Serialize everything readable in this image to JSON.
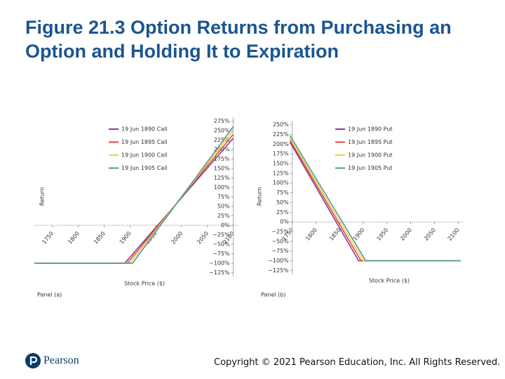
{
  "header": {
    "title": "Figure 21.3 Option Returns from Purchasing an Option and Holding It to Expiration"
  },
  "chart_data": [
    {
      "type": "line",
      "panel_label": "Panel (a)",
      "xlabel": "Stock Price ($)",
      "ylabel": "Return",
      "xlim": [
        1715,
        2110
      ],
      "xticks": [
        1750,
        1800,
        1850,
        1900,
        1950,
        2000,
        2050,
        2100
      ],
      "ylim": [
        -135,
        285
      ],
      "yticks": [
        {
          "value": 275,
          "label": "275%"
        },
        {
          "value": 250,
          "label": "250%"
        },
        {
          "value": 225,
          "label": "225%"
        },
        {
          "value": 200,
          "label": "200%"
        },
        {
          "value": 175,
          "label": "175%"
        },
        {
          "value": 150,
          "label": "150%"
        },
        {
          "value": 125,
          "label": "125%"
        },
        {
          "value": 100,
          "label": "100%"
        },
        {
          "value": 75,
          "label": "75%"
        },
        {
          "value": 50,
          "label": "50%"
        },
        {
          "value": 25,
          "label": "25%"
        },
        {
          "value": 0,
          "label": "0%"
        },
        {
          "value": -25,
          "label": "−25%"
        },
        {
          "value": -50,
          "label": "−50%"
        },
        {
          "value": -75,
          "label": "−75%"
        },
        {
          "value": -100,
          "label": "−100%"
        },
        {
          "value": -125,
          "label": "−125%"
        }
      ],
      "yaxis_at": 2100,
      "legend": "top-left",
      "series": [
        {
          "name": "19 Jun 1890 Call",
          "color": "#7e3f98",
          "x": [
            1715,
            1890,
            2100
          ],
          "values": [
            -100,
            -100,
            230
          ]
        },
        {
          "name": "19 Jun 1895 Call",
          "color": "#e8473c",
          "x": [
            1715,
            1895,
            2100
          ],
          "values": [
            -100,
            -100,
            240
          ]
        },
        {
          "name": "19 Jun 1900 Call",
          "color": "#e9d23c",
          "x": [
            1715,
            1900,
            2100
          ],
          "values": [
            -100,
            -100,
            250
          ]
        },
        {
          "name": "19 Jun 1905 Call",
          "color": "#4a9aa0",
          "x": [
            1715,
            1905,
            2100
          ],
          "values": [
            -100,
            -100,
            260
          ]
        }
      ]
    },
    {
      "type": "line",
      "panel_label": "Panel (b)",
      "xlabel": "Stock Price ($)",
      "ylabel": "Return",
      "xlim": [
        1740,
        2110
      ],
      "xticks": [
        1750,
        1800,
        1850,
        1900,
        1950,
        2000,
        2050,
        2100
      ],
      "ylim": [
        -135,
        260
      ],
      "yticks": [
        {
          "value": 250,
          "label": "250%"
        },
        {
          "value": 225,
          "label": "225%"
        },
        {
          "value": 200,
          "label": "200%"
        },
        {
          "value": 175,
          "label": "175%"
        },
        {
          "value": 150,
          "label": "150%"
        },
        {
          "value": 125,
          "label": "125%"
        },
        {
          "value": 100,
          "label": "100%"
        },
        {
          "value": 75,
          "label": "75%"
        },
        {
          "value": 50,
          "label": "50%"
        },
        {
          "value": 25,
          "label": "25%"
        },
        {
          "value": 0,
          "label": "0%"
        },
        {
          "value": -25,
          "label": "−25%"
        },
        {
          "value": -50,
          "label": "−50%"
        },
        {
          "value": -75,
          "label": "−75%"
        },
        {
          "value": -100,
          "label": "−100%"
        },
        {
          "value": -125,
          "label": "−125%"
        }
      ],
      "yaxis_at": 1750,
      "legend": "top-right",
      "series": [
        {
          "name": "19 Jun 1890 Put",
          "color": "#7e3f98",
          "x": [
            1745,
            1890,
            2105
          ],
          "values": [
            205,
            -100,
            -100
          ]
        },
        {
          "name": "19 Jun 1895 Put",
          "color": "#e8473c",
          "x": [
            1745,
            1895,
            2105
          ],
          "values": [
            210,
            -100,
            -100
          ]
        },
        {
          "name": "19 Jun 1900 Put",
          "color": "#e9d23c",
          "x": [
            1745,
            1900,
            2105
          ],
          "values": [
            215,
            -100,
            -100
          ]
        },
        {
          "name": "19 Jun 1905 Put",
          "color": "#4a9aa0",
          "x": [
            1745,
            1905,
            2105
          ],
          "values": [
            222,
            -100,
            -100
          ]
        }
      ]
    }
  ],
  "footer": {
    "logo": "Pearson",
    "copyright": "Copyright © 2021 Pearson Education, Inc. All Rights Reserved."
  }
}
